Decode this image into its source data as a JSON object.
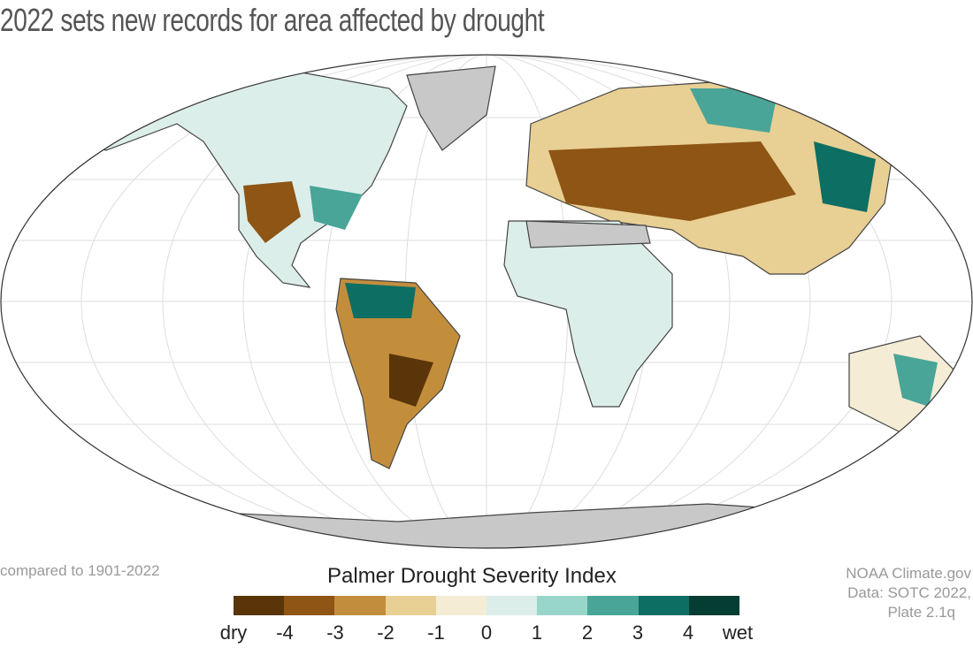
{
  "title": "2022 sets new records for area affected by drought",
  "note": "compared to 1901-2022",
  "credit": [
    "NOAA Climate.gov",
    "Data: SOTC 2022,",
    "Plate 2.1q"
  ],
  "legend": {
    "title": "Palmer Drought Severity Index",
    "colors": [
      "#5a3509",
      "#8e5515",
      "#c38e3c",
      "#e8cf94",
      "#f5ecd5",
      "#dceeea",
      "#98d6ca",
      "#49a597",
      "#0d6e63",
      "#053d33"
    ],
    "labels": [
      "dry",
      "-4",
      "-3",
      "-2",
      "-1",
      "0",
      "1",
      "2",
      "3",
      "4",
      "wet"
    ]
  },
  "map": {
    "projection": "Robinson",
    "no_data_color": "#c8c8c8",
    "ocean_color": "#ffffff"
  }
}
